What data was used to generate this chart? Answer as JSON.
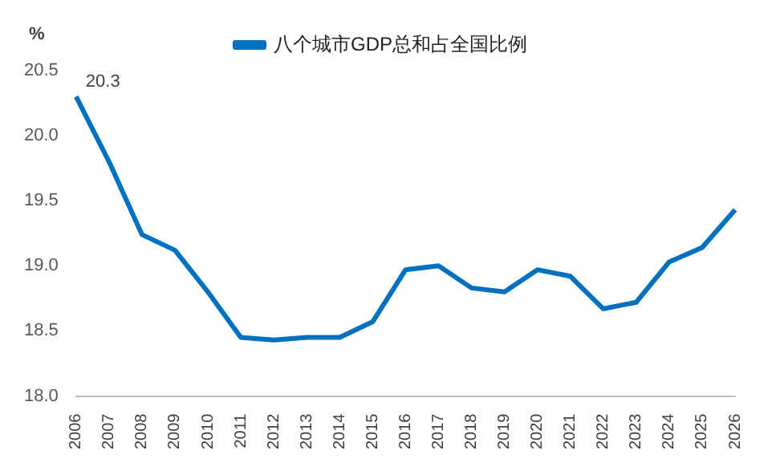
{
  "chart_data": {
    "type": "line",
    "ylabel": "%",
    "categories": [
      "2006",
      "2007",
      "2008",
      "2009",
      "2010",
      "2011",
      "2012",
      "2013",
      "2014",
      "2015",
      "2016",
      "2017",
      "2018",
      "2019",
      "2020",
      "2021",
      "2022",
      "2023",
      "2024",
      "2025",
      "2026"
    ],
    "series": [
      {
        "name": "八个城市GDP总和占全国比例",
        "color": "#0070c0",
        "values": [
          20.3,
          19.8,
          19.24,
          19.12,
          18.8,
          18.45,
          18.43,
          18.45,
          18.45,
          18.57,
          18.97,
          19.0,
          18.83,
          18.8,
          18.97,
          18.92,
          18.67,
          18.72,
          19.03,
          19.14,
          19.43
        ],
        "value_labels": [
          "20.3",
          null,
          null,
          null,
          null,
          null,
          null,
          null,
          null,
          null,
          null,
          null,
          null,
          null,
          null,
          null,
          null,
          null,
          null,
          null,
          null
        ]
      }
    ],
    "ylim": [
      18.0,
      20.5
    ],
    "yticks": [
      {
        "value": 18.0,
        "label": "18.0"
      },
      {
        "value": 18.5,
        "label": "18.5"
      },
      {
        "value": 19.0,
        "label": "19.0"
      },
      {
        "value": 19.5,
        "label": "19.5"
      },
      {
        "value": 20.0,
        "label": "20.0"
      },
      {
        "value": 20.5,
        "label": "20.5"
      }
    ],
    "grid": false,
    "legend": "top",
    "marker": "none",
    "line_style": "solid"
  }
}
